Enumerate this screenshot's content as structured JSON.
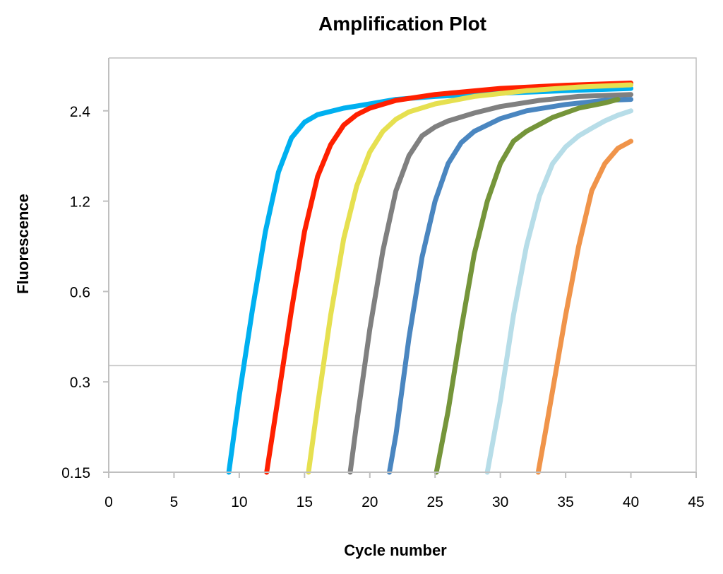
{
  "chart_data": {
    "type": "line",
    "title": "Amplification Plot",
    "xlabel": "Cycle number",
    "ylabel": "Fluorescence",
    "xlim": [
      0,
      45
    ],
    "ylim": [
      0.15,
      3.6
    ],
    "y_scale": "log2",
    "x_ticks": [
      "0",
      "5",
      "10",
      "15",
      "20",
      "25",
      "30",
      "35",
      "40",
      "45"
    ],
    "y_ticks": [
      "0.15",
      "0.3",
      "0.6",
      "1.2",
      "2.4"
    ],
    "x_tick_values": [
      0,
      5,
      10,
      15,
      20,
      25,
      30,
      35,
      40,
      45
    ],
    "y_tick_values": [
      0.15,
      0.3,
      0.6,
      1.2,
      2.4
    ],
    "threshold": 0.34,
    "grid": false,
    "legend": "none",
    "axis_color": "#bfbfbf",
    "threshold_color": "#cccccc",
    "series": [
      {
        "color": "#00b0f0",
        "x": [
          9.2,
          10.0,
          11.0,
          12.0,
          13.0,
          14.0,
          15.0,
          16.0,
          18.0,
          20.0,
          22.0,
          25.0,
          30.0,
          35.0,
          40.0
        ],
        "y": [
          0.15,
          0.27,
          0.52,
          0.95,
          1.5,
          1.95,
          2.2,
          2.33,
          2.45,
          2.53,
          2.62,
          2.68,
          2.75,
          2.8,
          2.85
        ]
      },
      {
        "color": "#ff2000",
        "x": [
          12.1,
          13.0,
          14.0,
          15.0,
          16.0,
          17.0,
          18.0,
          19.0,
          20.0,
          22.0,
          25.0,
          30.0,
          35.0,
          40.0
        ],
        "y": [
          0.15,
          0.27,
          0.52,
          0.95,
          1.45,
          1.85,
          2.15,
          2.33,
          2.45,
          2.6,
          2.72,
          2.85,
          2.92,
          2.97
        ]
      },
      {
        "color": "#e6e050",
        "x": [
          15.3,
          16.0,
          17.0,
          18.0,
          19.0,
          20.0,
          21.0,
          22.0,
          23.0,
          25.0,
          28.0,
          32.0,
          36.0,
          40.0
        ],
        "y": [
          0.15,
          0.25,
          0.5,
          0.9,
          1.35,
          1.75,
          2.05,
          2.25,
          2.38,
          2.53,
          2.68,
          2.8,
          2.88,
          2.93
        ]
      },
      {
        "color": "#808080",
        "x": [
          18.5,
          19.0,
          20.0,
          21.0,
          22.0,
          23.0,
          24.0,
          25.0,
          26.0,
          28.0,
          30.0,
          33.0,
          36.0,
          40.0
        ],
        "y": [
          0.15,
          0.22,
          0.45,
          0.82,
          1.3,
          1.7,
          1.98,
          2.12,
          2.22,
          2.36,
          2.48,
          2.6,
          2.68,
          2.72
        ]
      },
      {
        "color": "#4a86c0",
        "x": [
          21.5,
          22.0,
          23.0,
          24.0,
          25.0,
          26.0,
          27.0,
          28.0,
          30.0,
          32.0,
          35.0,
          38.0,
          40.0
        ],
        "y": [
          0.15,
          0.2,
          0.42,
          0.78,
          1.2,
          1.6,
          1.88,
          2.05,
          2.26,
          2.4,
          2.52,
          2.6,
          2.62
        ]
      },
      {
        "color": "#75953a",
        "x": [
          25.1,
          26.0,
          27.0,
          28.0,
          29.0,
          30.0,
          31.0,
          32.0,
          34.0,
          36.0,
          38.0,
          39.0
        ],
        "y": [
          0.15,
          0.24,
          0.45,
          0.8,
          1.2,
          1.6,
          1.9,
          2.05,
          2.28,
          2.45,
          2.55,
          2.62
        ]
      },
      {
        "color": "#b7dde8",
        "x": [
          29.0,
          30.0,
          31.0,
          32.0,
          33.0,
          34.0,
          35.0,
          36.0,
          37.0,
          38.0,
          39.0,
          40.0
        ],
        "y": [
          0.15,
          0.26,
          0.5,
          0.85,
          1.25,
          1.6,
          1.82,
          1.98,
          2.1,
          2.22,
          2.32,
          2.4
        ]
      },
      {
        "color": "#f0944a",
        "x": [
          32.9,
          33.5,
          34.0,
          35.0,
          36.0,
          37.0,
          38.0,
          39.0,
          40.0
        ],
        "y": [
          0.15,
          0.21,
          0.28,
          0.5,
          0.85,
          1.3,
          1.6,
          1.8,
          1.9
        ]
      }
    ]
  }
}
